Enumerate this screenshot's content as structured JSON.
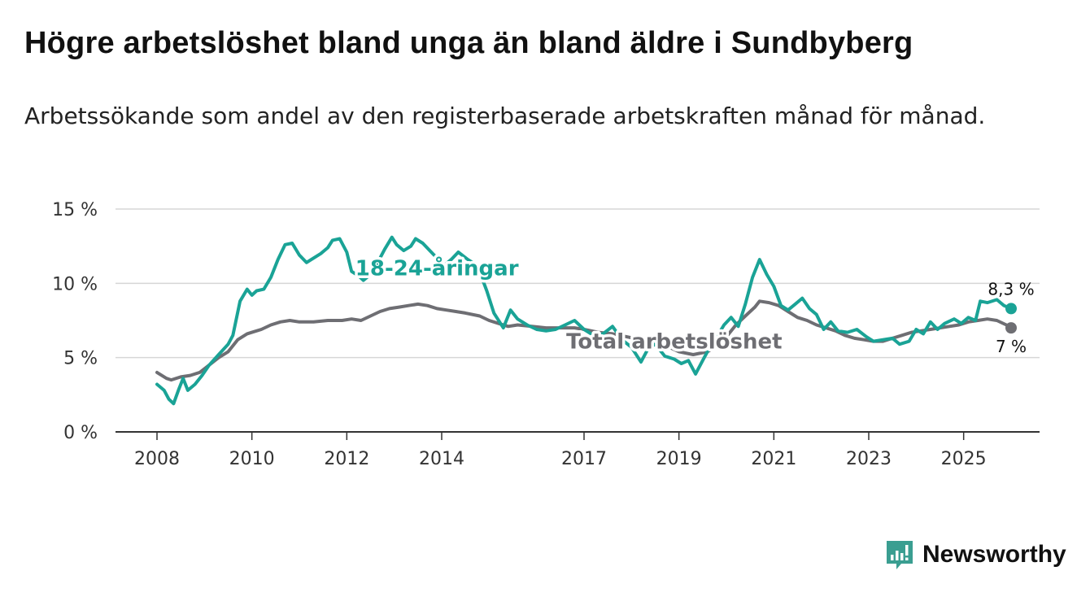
{
  "title": "Högre arbetslöshet bland unga än bland äldre i Sundbyberg",
  "subtitle": "Arbetssökande som andel av den registerbaserade arbetskraften månad för månad.",
  "brand": {
    "name": "Newsworthy",
    "icon": "bar-chart-logo-icon"
  },
  "colors": {
    "youth": "#1aa396",
    "total": "#6e6e73",
    "grid": "#d6d6d6",
    "axis": "#333333",
    "brand": "#3a9e91"
  },
  "chart_data": {
    "type": "line",
    "title": "Högre arbetslöshet bland unga än bland äldre i Sundbyberg",
    "xlabel": "",
    "ylabel": "",
    "xlim": [
      2008,
      2026.6
    ],
    "ylim": [
      0,
      15
    ],
    "yticks": [
      {
        "value": 0,
        "label": "0 %"
      },
      {
        "value": 5,
        "label": "5 %"
      },
      {
        "value": 10,
        "label": "10 %"
      },
      {
        "value": 15,
        "label": "15 %"
      }
    ],
    "xticks": [
      {
        "value": 2008,
        "label": "2008"
      },
      {
        "value": 2010,
        "label": "2010"
      },
      {
        "value": 2012,
        "label": "2012"
      },
      {
        "value": 2014,
        "label": "2014"
      },
      {
        "value": 2017,
        "label": "2017"
      },
      {
        "value": 2019,
        "label": "2019"
      },
      {
        "value": 2021,
        "label": "2021"
      },
      {
        "value": 2023,
        "label": "2023"
      },
      {
        "value": 2025,
        "label": "2025"
      }
    ],
    "grid": true,
    "series": [
      {
        "name": "Total arbetslöshet",
        "label": "Total arbetslöshet",
        "end_label": "7 %",
        "color": "#6e6e73",
        "points": [
          [
            2008.0,
            4.0
          ],
          [
            2008.2,
            3.6
          ],
          [
            2008.3,
            3.5
          ],
          [
            2008.5,
            3.7
          ],
          [
            2008.7,
            3.8
          ],
          [
            2008.9,
            4.0
          ],
          [
            2009.1,
            4.5
          ],
          [
            2009.3,
            5.0
          ],
          [
            2009.5,
            5.4
          ],
          [
            2009.7,
            6.2
          ],
          [
            2009.9,
            6.6
          ],
          [
            2010.0,
            6.7
          ],
          [
            2010.2,
            6.9
          ],
          [
            2010.4,
            7.2
          ],
          [
            2010.6,
            7.4
          ],
          [
            2010.8,
            7.5
          ],
          [
            2011.0,
            7.4
          ],
          [
            2011.3,
            7.4
          ],
          [
            2011.6,
            7.5
          ],
          [
            2011.9,
            7.5
          ],
          [
            2012.1,
            7.6
          ],
          [
            2012.3,
            7.5
          ],
          [
            2012.5,
            7.8
          ],
          [
            2012.7,
            8.1
          ],
          [
            2012.9,
            8.3
          ],
          [
            2013.1,
            8.4
          ],
          [
            2013.3,
            8.5
          ],
          [
            2013.5,
            8.6
          ],
          [
            2013.7,
            8.5
          ],
          [
            2013.9,
            8.3
          ],
          [
            2014.1,
            8.2
          ],
          [
            2014.3,
            8.1
          ],
          [
            2014.5,
            8.0
          ],
          [
            2014.8,
            7.8
          ],
          [
            2015.0,
            7.5
          ],
          [
            2015.2,
            7.3
          ],
          [
            2015.4,
            7.1
          ],
          [
            2015.6,
            7.2
          ],
          [
            2015.9,
            7.1
          ],
          [
            2016.2,
            7.0
          ],
          [
            2016.5,
            7.0
          ],
          [
            2016.8,
            7.0
          ],
          [
            2017.0,
            6.9
          ],
          [
            2017.3,
            6.7
          ],
          [
            2017.6,
            6.6
          ],
          [
            2017.9,
            6.4
          ],
          [
            2018.2,
            6.2
          ],
          [
            2018.5,
            6.0
          ],
          [
            2018.8,
            5.7
          ],
          [
            2019.0,
            5.4
          ],
          [
            2019.3,
            5.2
          ],
          [
            2019.6,
            5.4
          ],
          [
            2019.8,
            5.8
          ],
          [
            2020.0,
            6.4
          ],
          [
            2020.2,
            7.2
          ],
          [
            2020.4,
            7.8
          ],
          [
            2020.6,
            8.4
          ],
          [
            2020.7,
            8.8
          ],
          [
            2020.9,
            8.7
          ],
          [
            2021.1,
            8.5
          ],
          [
            2021.3,
            8.1
          ],
          [
            2021.5,
            7.7
          ],
          [
            2021.7,
            7.5
          ],
          [
            2021.9,
            7.2
          ],
          [
            2022.1,
            7.0
          ],
          [
            2022.3,
            6.8
          ],
          [
            2022.5,
            6.5
          ],
          [
            2022.7,
            6.3
          ],
          [
            2022.9,
            6.2
          ],
          [
            2023.1,
            6.1
          ],
          [
            2023.3,
            6.1
          ],
          [
            2023.5,
            6.3
          ],
          [
            2023.7,
            6.5
          ],
          [
            2023.9,
            6.7
          ],
          [
            2024.1,
            6.8
          ],
          [
            2024.3,
            6.9
          ],
          [
            2024.5,
            7.0
          ],
          [
            2024.7,
            7.1
          ],
          [
            2024.9,
            7.2
          ],
          [
            2025.1,
            7.4
          ],
          [
            2025.3,
            7.5
          ],
          [
            2025.5,
            7.6
          ],
          [
            2025.7,
            7.5
          ],
          [
            2025.9,
            7.2
          ],
          [
            2026.0,
            7.0
          ]
        ]
      },
      {
        "name": "18-24-åringar",
        "label": "18-24-åringar",
        "end_label": "8,3 %",
        "color": "#1aa396",
        "points": [
          [
            2008.0,
            3.2
          ],
          [
            2008.15,
            2.8
          ],
          [
            2008.25,
            2.2
          ],
          [
            2008.35,
            1.9
          ],
          [
            2008.45,
            2.8
          ],
          [
            2008.55,
            3.6
          ],
          [
            2008.65,
            2.8
          ],
          [
            2008.8,
            3.2
          ],
          [
            2008.95,
            3.8
          ],
          [
            2009.1,
            4.5
          ],
          [
            2009.3,
            5.2
          ],
          [
            2009.5,
            5.9
          ],
          [
            2009.6,
            6.5
          ],
          [
            2009.75,
            8.8
          ],
          [
            2009.9,
            9.6
          ],
          [
            2010.0,
            9.2
          ],
          [
            2010.1,
            9.5
          ],
          [
            2010.25,
            9.6
          ],
          [
            2010.4,
            10.4
          ],
          [
            2010.55,
            11.6
          ],
          [
            2010.7,
            12.6
          ],
          [
            2010.85,
            12.7
          ],
          [
            2011.0,
            11.9
          ],
          [
            2011.15,
            11.4
          ],
          [
            2011.3,
            11.7
          ],
          [
            2011.45,
            12.0
          ],
          [
            2011.6,
            12.4
          ],
          [
            2011.7,
            12.9
          ],
          [
            2011.85,
            13.0
          ],
          [
            2012.0,
            12.1
          ],
          [
            2012.1,
            10.8
          ],
          [
            2012.25,
            10.5
          ],
          [
            2012.35,
            10.2
          ],
          [
            2012.5,
            10.6
          ],
          [
            2012.65,
            11.4
          ],
          [
            2012.8,
            12.3
          ],
          [
            2012.95,
            13.1
          ],
          [
            2013.05,
            12.6
          ],
          [
            2013.2,
            12.2
          ],
          [
            2013.35,
            12.5
          ],
          [
            2013.45,
            13.0
          ],
          [
            2013.6,
            12.7
          ],
          [
            2013.75,
            12.2
          ],
          [
            2013.9,
            11.7
          ],
          [
            2014.05,
            11.2
          ],
          [
            2014.2,
            11.6
          ],
          [
            2014.35,
            12.1
          ],
          [
            2014.55,
            11.6
          ],
          [
            2014.75,
            11.2
          ],
          [
            2014.95,
            9.5
          ],
          [
            2015.1,
            8.0
          ],
          [
            2015.3,
            7.0
          ],
          [
            2015.45,
            8.2
          ],
          [
            2015.6,
            7.6
          ],
          [
            2015.8,
            7.2
          ],
          [
            2016.0,
            6.9
          ],
          [
            2016.2,
            6.8
          ],
          [
            2016.4,
            6.9
          ],
          [
            2016.6,
            7.2
          ],
          [
            2016.8,
            7.5
          ],
          [
            2017.0,
            6.9
          ],
          [
            2017.2,
            6.5
          ],
          [
            2017.4,
            6.6
          ],
          [
            2017.6,
            7.1
          ],
          [
            2017.8,
            6.2
          ],
          [
            2018.0,
            5.7
          ],
          [
            2018.2,
            4.7
          ],
          [
            2018.35,
            5.6
          ],
          [
            2018.5,
            5.9
          ],
          [
            2018.7,
            5.1
          ],
          [
            2018.9,
            4.9
          ],
          [
            2019.05,
            4.6
          ],
          [
            2019.2,
            4.8
          ],
          [
            2019.35,
            3.9
          ],
          [
            2019.5,
            4.8
          ],
          [
            2019.65,
            5.7
          ],
          [
            2019.8,
            6.4
          ],
          [
            2019.95,
            7.2
          ],
          [
            2020.1,
            7.7
          ],
          [
            2020.25,
            7.1
          ],
          [
            2020.4,
            8.6
          ],
          [
            2020.55,
            10.4
          ],
          [
            2020.7,
            11.6
          ],
          [
            2020.85,
            10.6
          ],
          [
            2021.0,
            9.8
          ],
          [
            2021.15,
            8.5
          ],
          [
            2021.3,
            8.2
          ],
          [
            2021.45,
            8.6
          ],
          [
            2021.6,
            9.0
          ],
          [
            2021.75,
            8.3
          ],
          [
            2021.9,
            7.9
          ],
          [
            2022.05,
            6.9
          ],
          [
            2022.2,
            7.4
          ],
          [
            2022.35,
            6.8
          ],
          [
            2022.55,
            6.7
          ],
          [
            2022.75,
            6.9
          ],
          [
            2022.95,
            6.4
          ],
          [
            2023.1,
            6.1
          ],
          [
            2023.3,
            6.2
          ],
          [
            2023.5,
            6.3
          ],
          [
            2023.65,
            5.9
          ],
          [
            2023.85,
            6.1
          ],
          [
            2024.0,
            6.9
          ],
          [
            2024.15,
            6.6
          ],
          [
            2024.3,
            7.4
          ],
          [
            2024.45,
            6.9
          ],
          [
            2024.6,
            7.3
          ],
          [
            2024.8,
            7.6
          ],
          [
            2024.95,
            7.3
          ],
          [
            2025.1,
            7.7
          ],
          [
            2025.25,
            7.5
          ],
          [
            2025.35,
            8.8
          ],
          [
            2025.5,
            8.7
          ],
          [
            2025.7,
            8.9
          ],
          [
            2025.85,
            8.5
          ],
          [
            2026.0,
            8.3
          ]
        ]
      }
    ]
  }
}
